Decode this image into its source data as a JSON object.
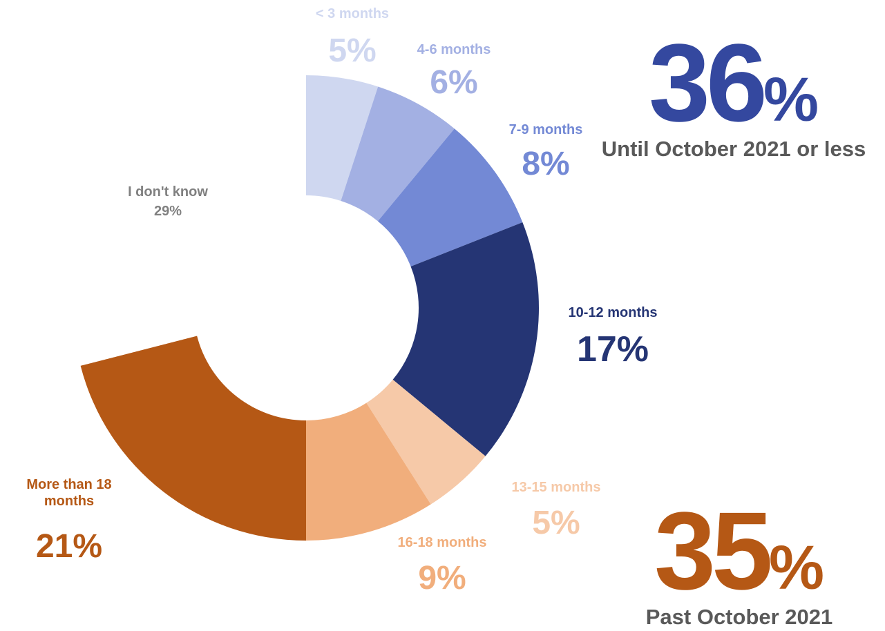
{
  "chart_data": {
    "type": "donut",
    "categories": [
      "< 3 months",
      "4-6 months",
      "7-9 months",
      "10-12 months",
      "13-15 months",
      "16-18 months",
      "More than 18 months",
      "I don't know"
    ],
    "values": [
      5,
      6,
      8,
      17,
      5,
      9,
      21,
      29
    ],
    "value_labels": [
      "5%",
      "6%",
      "8%",
      "17%",
      "5%",
      "9%",
      "21%",
      "29%"
    ],
    "colors": [
      "#cfd7f0",
      "#a3b0e3",
      "#7389d5",
      "#253574",
      "#f6c9a8",
      "#f1ae7c",
      "#b55815",
      "#ffffff"
    ],
    "label_colors": [
      "#cfd7f0",
      "#a3b0e3",
      "#7389d5",
      "#253574",
      "#f6c9a8",
      "#f1ae7c",
      "#b55815",
      "#808080"
    ],
    "annotations": [
      {
        "value": 36,
        "unit": "%",
        "caption": "Until October 2021 or less",
        "color": "#34489f"
      },
      {
        "value": 35,
        "unit": "%",
        "caption": "Past October 2021",
        "color": "#b55815"
      }
    ]
  }
}
